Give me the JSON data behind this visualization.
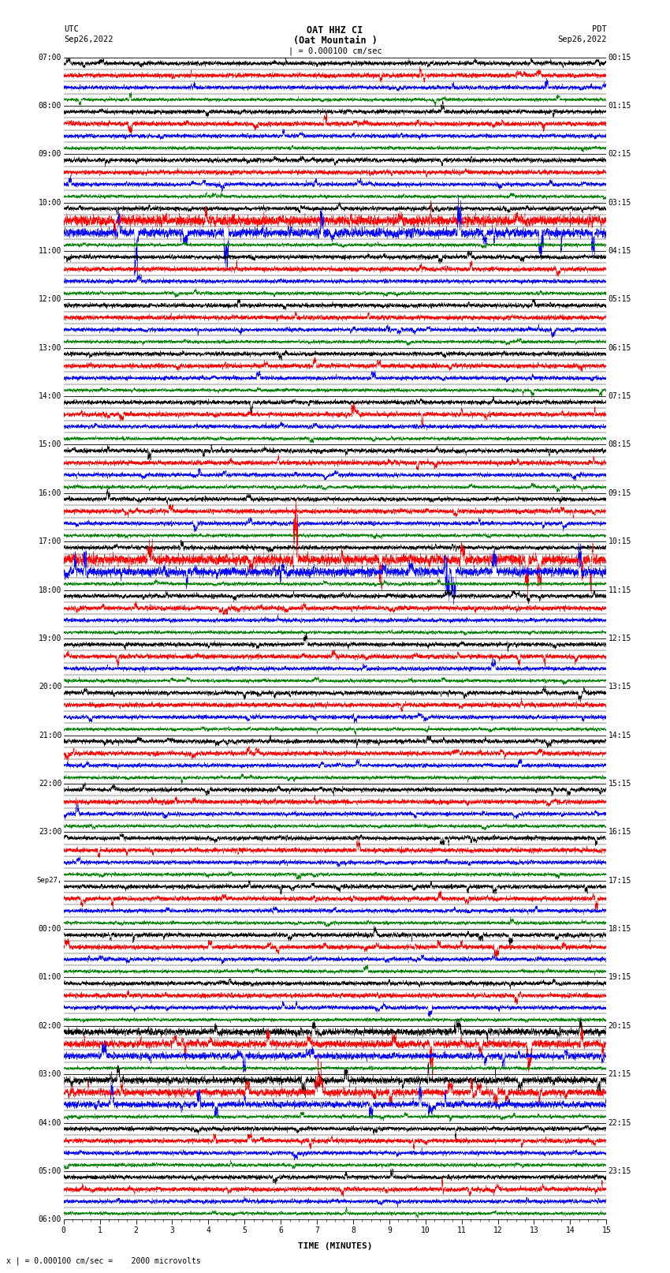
{
  "title_line1": "OAT HHZ CI",
  "title_line2": "(Oat Mountain )",
  "scale_label": "| = 0.000100 cm/sec",
  "utc_label": "UTC",
  "pdt_label": "PDT",
  "date_left": "Sep26,2022",
  "date_right": "Sep26,2022",
  "xlabel": "TIME (MINUTES)",
  "scale_note": "x | = 0.000100 cm/sec =    2000 microvolts",
  "background_color": "#ffffff",
  "trace_colors": [
    "#000000",
    "#ff0000",
    "#0000ff",
    "#008000"
  ],
  "actual_rows": 24,
  "figsize": [
    8.5,
    16.13
  ],
  "dpi": 100,
  "utc_times_left": [
    "07:00",
    "08:00",
    "09:00",
    "10:00",
    "11:00",
    "12:00",
    "13:00",
    "14:00",
    "15:00",
    "16:00",
    "17:00",
    "18:00",
    "19:00",
    "20:00",
    "21:00",
    "22:00",
    "23:00",
    "Sep27,",
    "00:00",
    "01:00",
    "02:00",
    "03:00",
    "04:00",
    "05:00",
    "06:00"
  ],
  "pdt_times_right": [
    "00:15",
    "01:15",
    "02:15",
    "03:15",
    "04:15",
    "05:15",
    "06:15",
    "07:15",
    "08:15",
    "09:15",
    "10:15",
    "11:15",
    "12:15",
    "13:15",
    "14:15",
    "15:15",
    "16:15",
    "17:15",
    "18:15",
    "19:15",
    "20:15",
    "21:15",
    "22:15",
    "23:15"
  ]
}
